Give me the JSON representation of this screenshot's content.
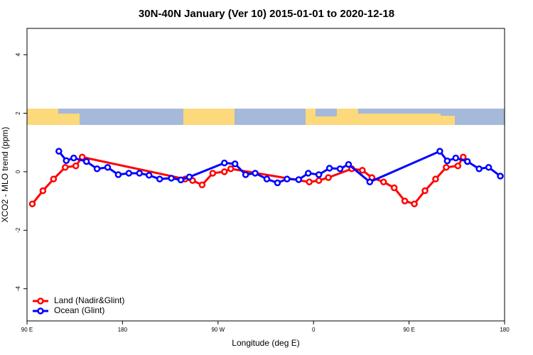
{
  "chart_data": {
    "type": "line",
    "title": "30N-40N January (Ver 10)   2015-01-01 to 2020-12-18",
    "x_label": "Longitude (deg E)",
    "y_label": "XCO2 - MLO trend (ppm)",
    "xlim": [
      90,
      540
    ],
    "ylim": [
      -5.1,
      4.9
    ],
    "xticks": [
      {
        "value": 90,
        "label": "90 E"
      },
      180,
      {
        "value": 270,
        "label": "90 W"
      },
      {
        "value": 360,
        "label": "0"
      },
      {
        "value": 450,
        "label": "90 E"
      },
      {
        "value": 540,
        "label": "180"
      }
    ],
    "yticks": [
      -4,
      -2,
      0,
      2,
      4
    ],
    "legend": "bottom-left",
    "series": [
      {
        "name": "Land (Nadir&Glint)",
        "color": "#ff0000",
        "x": [
          95,
          105,
          115,
          126,
          136,
          142,
          239,
          246,
          255,
          265,
          276,
          282,
          356,
          365,
          374,
          396,
          406,
          415,
          426,
          436,
          446,
          455,
          465,
          475,
          485,
          496,
          501
        ],
        "values": [
          -1.1,
          -0.65,
          -0.25,
          0.15,
          0.2,
          0.5,
          -0.25,
          -0.3,
          -0.45,
          -0.05,
          0.0,
          0.1,
          -0.35,
          -0.3,
          -0.2,
          0.1,
          0.05,
          -0.2,
          -0.35,
          -0.55,
          -1.0,
          -1.1,
          -0.65,
          -0.25,
          0.15,
          0.2,
          0.5
        ]
      },
      {
        "name": "Ocean (Glint)",
        "color": "#0000ff",
        "x": [
          120,
          127,
          134,
          146,
          156,
          166,
          176,
          186,
          196,
          205,
          215,
          226,
          235,
          243,
          276,
          286,
          296,
          305,
          316,
          326,
          335,
          346,
          355,
          365,
          375,
          385,
          393,
          413,
          479,
          486,
          494,
          505,
          516,
          525,
          536
        ],
        "values": [
          0.7,
          0.38,
          0.47,
          0.35,
          0.1,
          0.15,
          -0.1,
          -0.05,
          -0.05,
          -0.12,
          -0.25,
          -0.22,
          -0.28,
          -0.18,
          0.3,
          0.27,
          -0.1,
          -0.05,
          -0.25,
          -0.38,
          -0.25,
          -0.27,
          -0.05,
          -0.1,
          0.12,
          0.1,
          0.25,
          -0.35,
          0.7,
          0.37,
          0.47,
          0.35,
          0.1,
          0.15,
          -0.15
        ]
      }
    ]
  }
}
